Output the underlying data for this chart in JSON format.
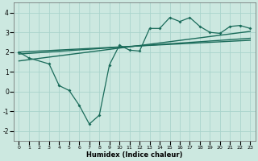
{
  "xlabel": "Humidex (Indice chaleur)",
  "bg_color": "#cce8e0",
  "line_color": "#1a6b5a",
  "xlim": [
    -0.5,
    23.5
  ],
  "ylim": [
    -2.5,
    4.5
  ],
  "xticks": [
    0,
    1,
    2,
    3,
    4,
    5,
    6,
    7,
    8,
    9,
    10,
    11,
    12,
    13,
    14,
    15,
    16,
    17,
    18,
    19,
    20,
    21,
    22,
    23
  ],
  "yticks": [
    -2,
    -1,
    0,
    1,
    2,
    3,
    4
  ],
  "grid_color": "#aad4cc",
  "curve1_x": [
    0,
    1,
    3,
    4,
    5,
    6,
    7,
    8,
    9,
    10,
    11,
    12,
    13,
    14,
    15,
    16,
    17,
    18,
    19,
    20,
    21,
    22,
    23
  ],
  "curve1_y": [
    2.0,
    1.7,
    1.4,
    0.3,
    0.05,
    -0.7,
    -1.65,
    -1.2,
    1.35,
    2.35,
    2.1,
    2.05,
    3.2,
    3.2,
    3.75,
    3.55,
    3.75,
    3.3,
    3.0,
    2.95,
    3.3,
    3.35,
    3.2
  ],
  "line1_x": [
    0,
    23
  ],
  "line1_y": [
    1.55,
    3.05
  ],
  "line2_x": [
    0,
    23
  ],
  "line2_y": [
    1.9,
    2.7
  ],
  "line3_x": [
    0,
    23
  ],
  "line3_y": [
    2.0,
    2.6
  ]
}
